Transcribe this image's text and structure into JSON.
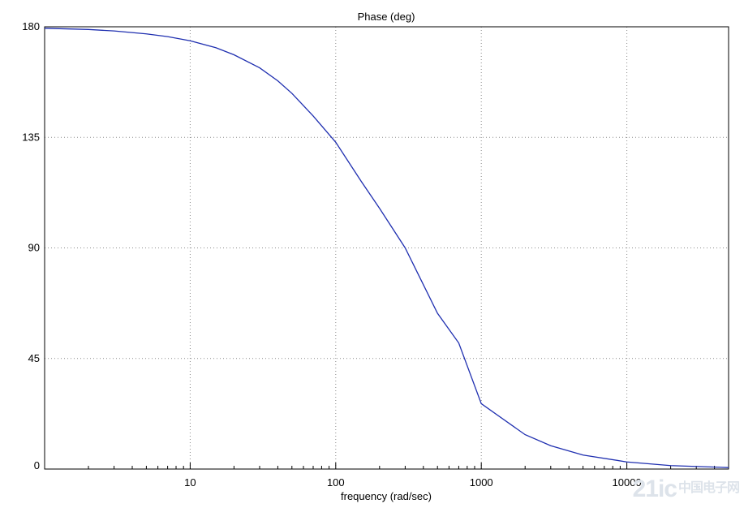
{
  "chart_data": {
    "type": "line",
    "title": "Phase (deg)",
    "xlabel": "frequency (rad/sec)",
    "ylabel": "",
    "x_scale": "log",
    "xlim": [
      1,
      50000
    ],
    "ylim": [
      0,
      180
    ],
    "x_ticks": [
      {
        "value": 10,
        "label": "10"
      },
      {
        "value": 100,
        "label": "100"
      },
      {
        "value": 1000,
        "label": "1000"
      },
      {
        "value": 10000,
        "label": "10000"
      }
    ],
    "y_ticks": [
      {
        "value": 0,
        "label": "0"
      },
      {
        "value": 45,
        "label": "45"
      },
      {
        "value": 90,
        "label": "90"
      },
      {
        "value": 135,
        "label": "135"
      },
      {
        "value": 180,
        "label": "180"
      }
    ],
    "grid": true,
    "legend": "none",
    "series": [
      {
        "color": "#1f2fb0",
        "x": [
          1,
          2,
          3,
          5,
          7,
          10,
          15,
          20,
          30,
          40,
          50,
          70,
          100,
          150,
          200,
          300,
          500,
          700,
          1000,
          2000,
          3000,
          5000,
          10000,
          20000,
          50000
        ],
        "y": [
          179.4,
          178.9,
          178.3,
          177.1,
          176.0,
          174.3,
          171.5,
          168.6,
          163.3,
          158.0,
          152.9,
          143.7,
          133.0,
          117.0,
          106.1,
          90.0,
          63.4,
          51.3,
          26.6,
          14.0,
          9.5,
          5.7,
          2.9,
          1.4,
          0.6
        ]
      }
    ]
  },
  "watermark": {
    "text": "21ic",
    "text_cn": "中国电子网"
  }
}
